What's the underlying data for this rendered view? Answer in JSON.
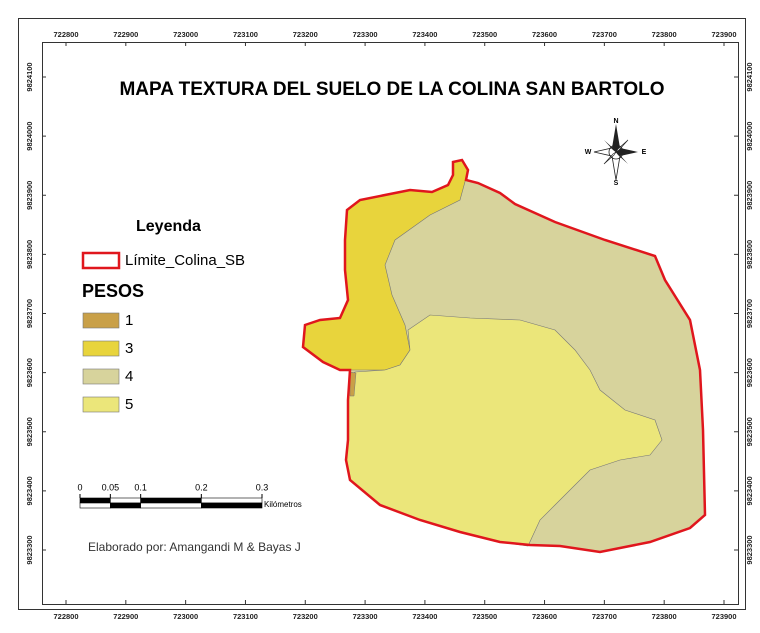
{
  "title": "MAPA TEXTURA DEL SUELO DE LA COLINA SAN BARTOLO",
  "grid": {
    "x_ticks": [
      722800,
      722900,
      723000,
      723100,
      723200,
      723300,
      723400,
      723500,
      723600,
      723700,
      723800,
      723900
    ],
    "y_ticks": [
      9824100,
      9824000,
      9823900,
      9823800,
      9823700,
      9823600,
      9823500,
      9823400,
      9823300
    ]
  },
  "legend": {
    "title": "Leyenda",
    "boundary_label": "Límite_Colina_SB",
    "boundary_color": "#e0161d",
    "group_title": "PESOS",
    "items": [
      {
        "label": "1",
        "color": "#c9a048"
      },
      {
        "label": "3",
        "color": "#e8d43c"
      },
      {
        "label": "4",
        "color": "#d7d39c"
      },
      {
        "label": "5",
        "color": "#ebe67a"
      }
    ]
  },
  "scale_bar": {
    "ticks": [
      0,
      0.05,
      0.1,
      0.2,
      0.3
    ],
    "unit": "Kilómetros"
  },
  "credit": "Elaborado por: Amangandi M & Bayas J",
  "compass": {
    "n": "N",
    "s": "S",
    "e": "E",
    "w": "W"
  }
}
